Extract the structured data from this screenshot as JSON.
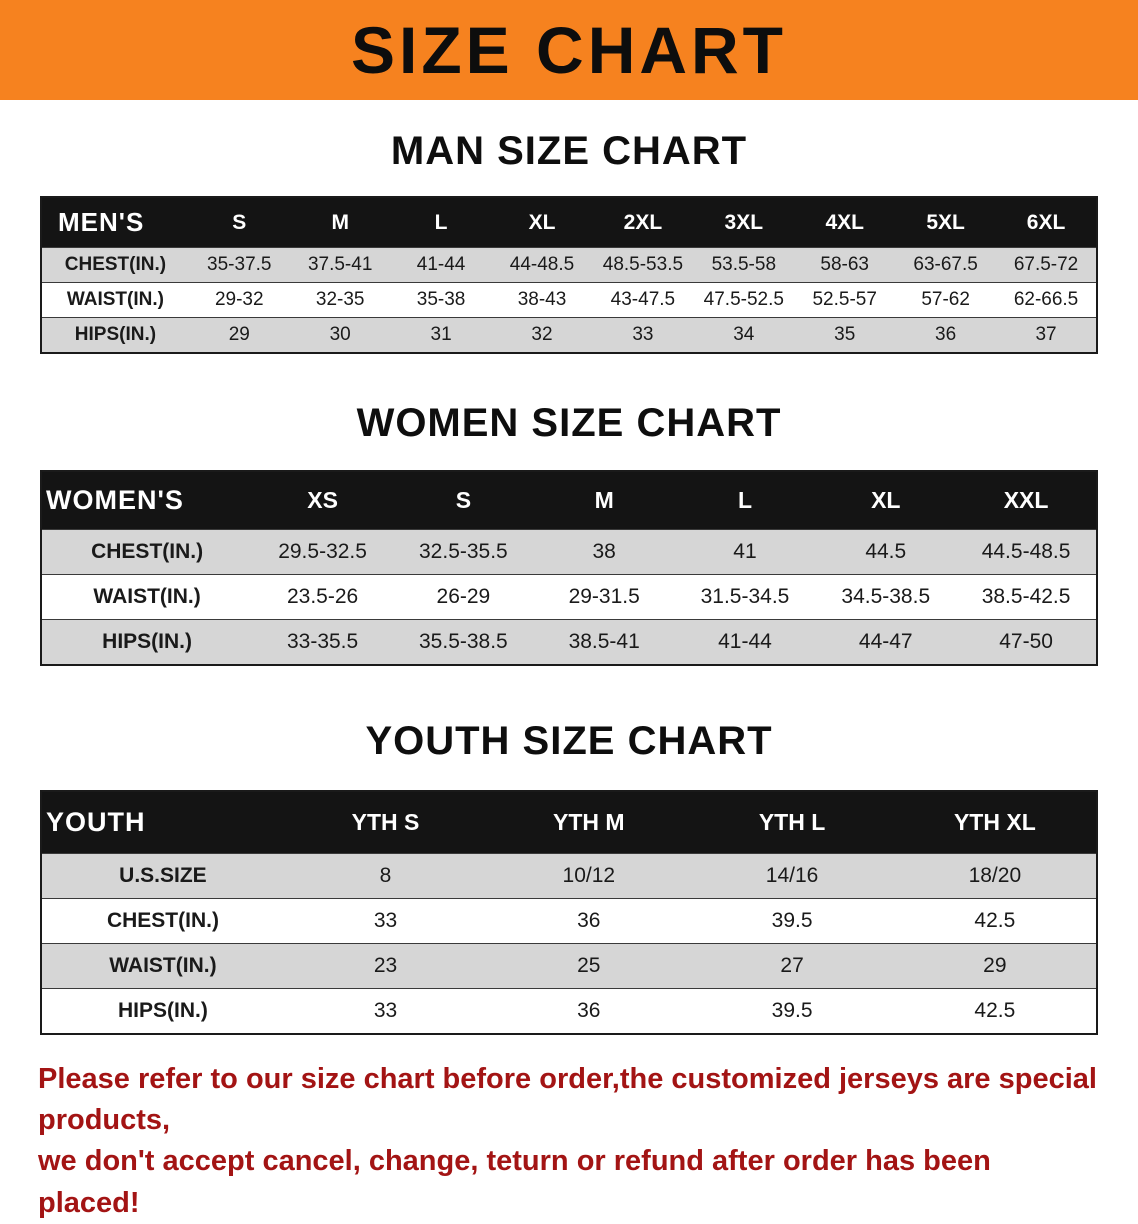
{
  "banner": {
    "title": "SIZE CHART",
    "background_color": "#F6821F",
    "text_color": "#0d0d0d"
  },
  "sections": {
    "men": {
      "heading": "MAN SIZE CHART",
      "table": {
        "header": [
          "MEN'S",
          "S",
          "M",
          "L",
          "XL",
          "2XL",
          "3XL",
          "4XL",
          "5XL",
          "6XL"
        ],
        "rows": [
          [
            "CHEST(IN.)",
            "35-37.5",
            "37.5-41",
            "41-44",
            "44-48.5",
            "48.5-53.5",
            "53.5-58",
            "58-63",
            "63-67.5",
            "67.5-72"
          ],
          [
            "WAIST(IN.)",
            "29-32",
            "32-35",
            "35-38",
            "38-43",
            "43-47.5",
            "47.5-52.5",
            "52.5-57",
            "57-62",
            "62-66.5"
          ],
          [
            "HIPS(IN.)",
            "29",
            "30",
            "31",
            "32",
            "33",
            "34",
            "35",
            "36",
            "37"
          ]
        ]
      }
    },
    "women": {
      "heading": "WOMEN SIZE CHART",
      "table": {
        "header": [
          "WOMEN'S",
          "XS",
          "S",
          "M",
          "L",
          "XL",
          "XXL"
        ],
        "rows": [
          [
            "CHEST(IN.)",
            "29.5-32.5",
            "32.5-35.5",
            "38",
            "41",
            "44.5",
            "44.5-48.5"
          ],
          [
            "WAIST(IN.)",
            "23.5-26",
            "26-29",
            "29-31.5",
            "31.5-34.5",
            "34.5-38.5",
            "38.5-42.5"
          ],
          [
            "HIPS(IN.)",
            "33-35.5",
            "35.5-38.5",
            "38.5-41",
            "41-44",
            "44-47",
            "47-50"
          ]
        ]
      }
    },
    "youth": {
      "heading": "YOUTH SIZE CHART",
      "table": {
        "header": [
          "YOUTH",
          "YTH S",
          "YTH M",
          "YTH L",
          "YTH XL"
        ],
        "rows": [
          [
            "U.S.SIZE",
            "8",
            "10/12",
            "14/16",
            "18/20"
          ],
          [
            "CHEST(IN.)",
            "33",
            "36",
            "39.5",
            "42.5"
          ],
          [
            "WAIST(IN.)",
            "23",
            "25",
            "27",
            "29"
          ],
          [
            "HIPS(IN.)",
            "33",
            "36",
            "39.5",
            "42.5"
          ]
        ]
      }
    }
  },
  "footer": {
    "line1": "Please refer to our size chart before order,the customized jerseys are special products,",
    "line2": "we don't accept cancel, change, teturn or refund after order has been placed!",
    "text_color": "#A31414"
  },
  "colors": {
    "table_header_bg": "#141414",
    "table_alt_row_bg": "#d6d6d6",
    "banner_orange": "#F6821F"
  }
}
